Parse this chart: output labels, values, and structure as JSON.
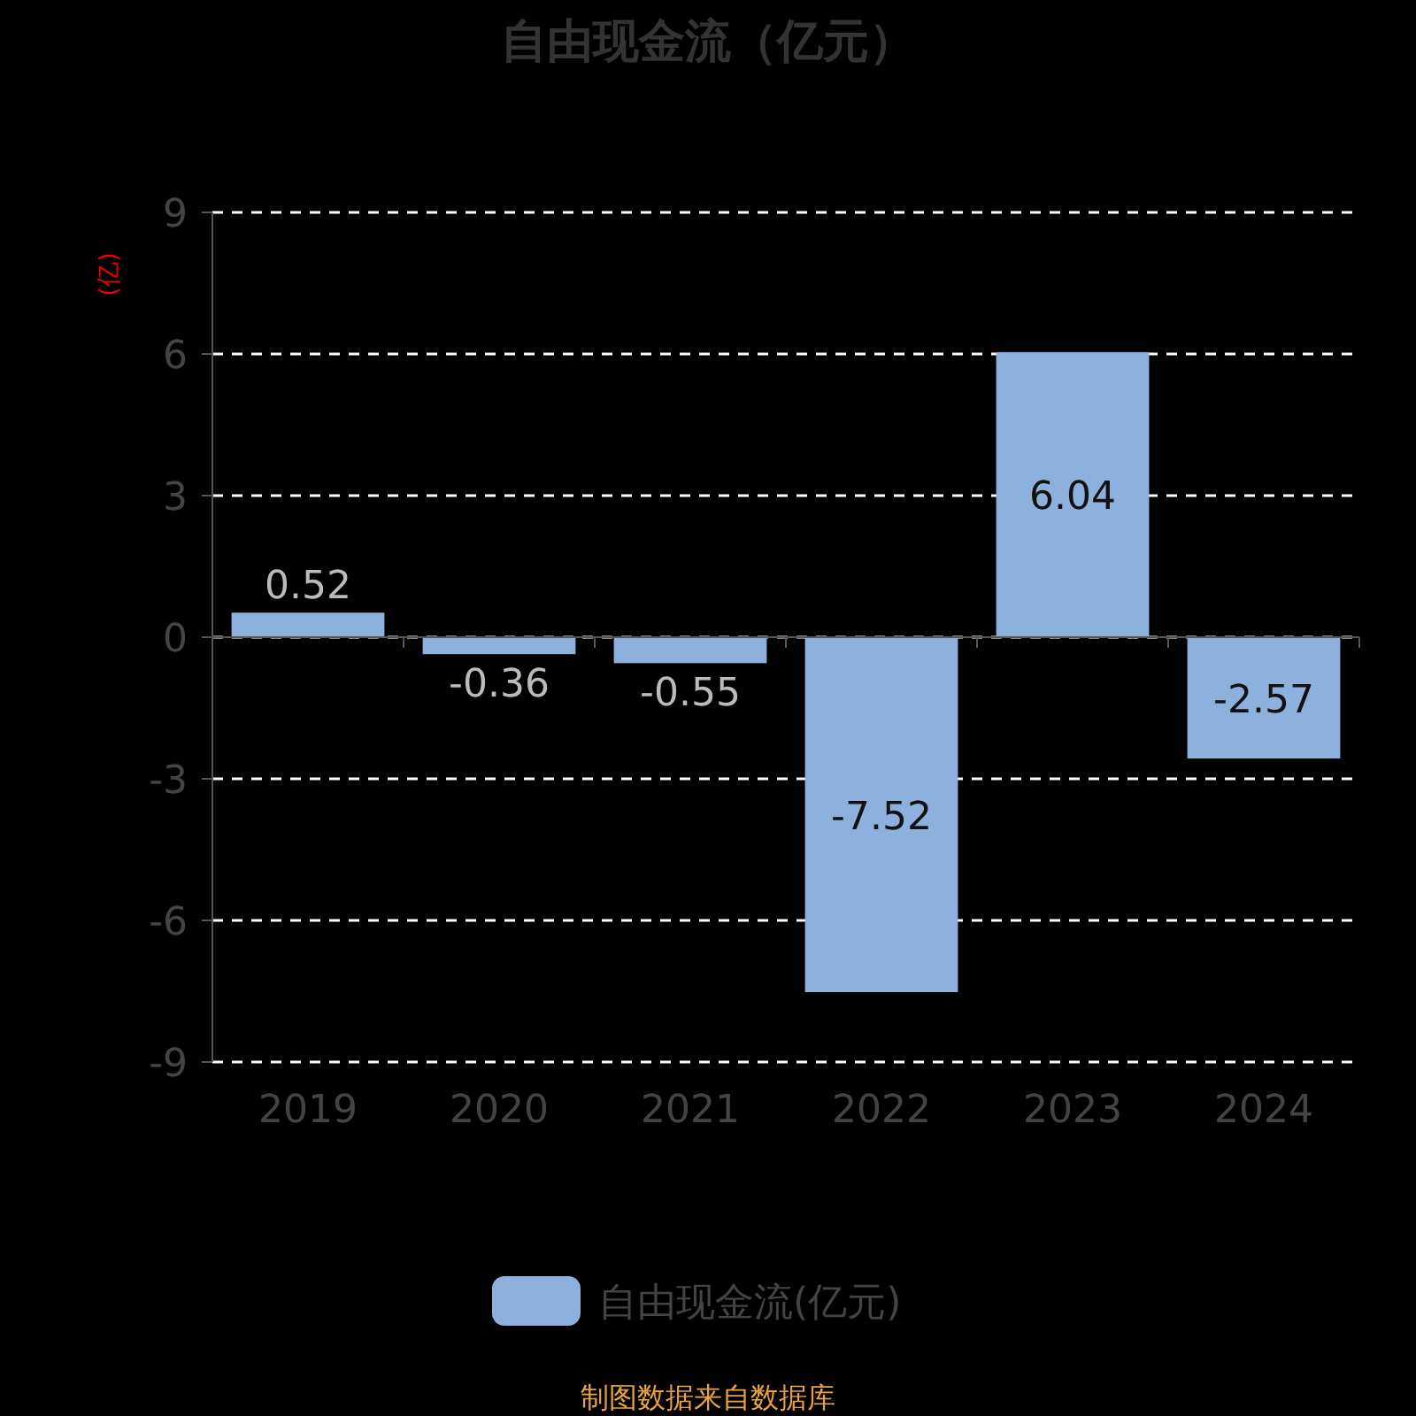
{
  "chart_data": {
    "type": "bar",
    "title": "自由现金流（亿元）",
    "ylabel": "(亿)",
    "categories": [
      "2019",
      "2020",
      "2021",
      "2022",
      "2023",
      "2024"
    ],
    "series": [
      {
        "name": "自由现金流(亿元)",
        "color": "#8eb0dc",
        "values": [
          0.52,
          -0.36,
          -0.55,
          -7.52,
          6.04,
          -2.57
        ]
      }
    ],
    "ylim": [
      -9,
      9
    ],
    "yticks": [
      -9,
      -6,
      -3,
      0,
      3,
      6,
      9
    ],
    "grid": "y",
    "legend": "bottom",
    "data_labels": true,
    "annotations": [
      "制图数据来自数据库"
    ]
  }
}
